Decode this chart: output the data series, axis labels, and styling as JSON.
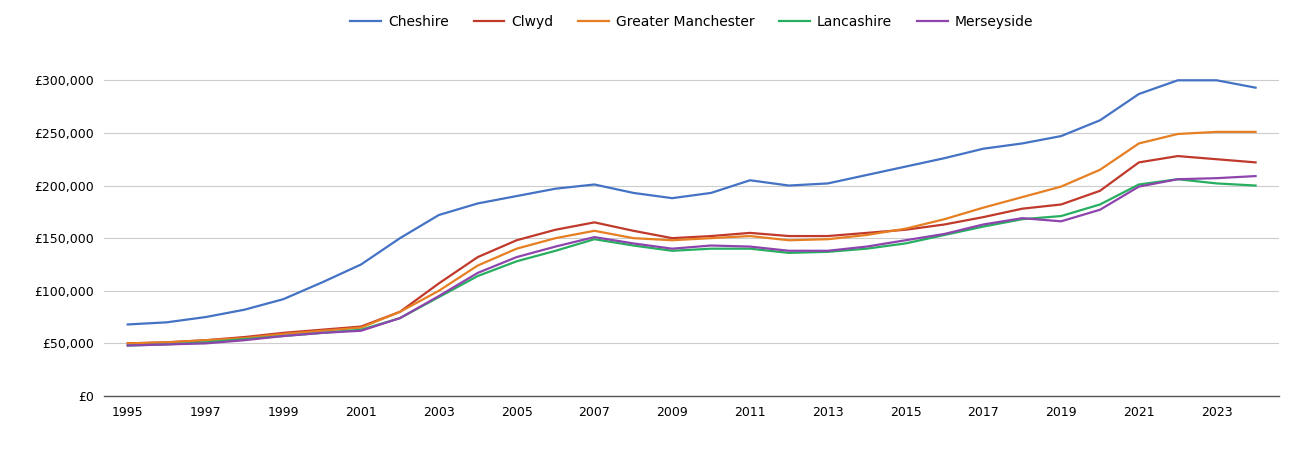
{
  "years": [
    1995,
    1996,
    1997,
    1998,
    1999,
    2000,
    2001,
    2002,
    2003,
    2004,
    2005,
    2006,
    2007,
    2008,
    2009,
    2010,
    2011,
    2012,
    2013,
    2014,
    2015,
    2016,
    2017,
    2018,
    2019,
    2020,
    2021,
    2022,
    2023,
    2024
  ],
  "Cheshire": [
    68000,
    70000,
    75000,
    82000,
    92000,
    108000,
    125000,
    150000,
    172000,
    183000,
    190000,
    197000,
    201000,
    193000,
    188000,
    193000,
    205000,
    200000,
    202000,
    210000,
    218000,
    226000,
    235000,
    240000,
    247000,
    262000,
    287000,
    300000,
    300000,
    293000
  ],
  "Clwyd": [
    50000,
    51000,
    53000,
    56000,
    60000,
    63000,
    66000,
    80000,
    107000,
    132000,
    148000,
    158000,
    165000,
    157000,
    150000,
    152000,
    155000,
    152000,
    152000,
    155000,
    158000,
    163000,
    170000,
    178000,
    182000,
    195000,
    222000,
    228000,
    225000,
    222000
  ],
  "Greater Manchester": [
    50000,
    51000,
    53000,
    55000,
    59000,
    62000,
    65000,
    80000,
    100000,
    124000,
    140000,
    150000,
    157000,
    150000,
    148000,
    150000,
    152000,
    148000,
    149000,
    153000,
    159000,
    168000,
    179000,
    189000,
    199000,
    215000,
    240000,
    249000,
    251000,
    251000
  ],
  "Lancashire": [
    48000,
    49000,
    51000,
    54000,
    57000,
    60000,
    63000,
    74000,
    94000,
    114000,
    128000,
    138000,
    149000,
    143000,
    138000,
    140000,
    140000,
    136000,
    137000,
    140000,
    145000,
    153000,
    161000,
    168000,
    171000,
    182000,
    201000,
    206000,
    202000,
    200000
  ],
  "Merseyside": [
    48000,
    49000,
    50000,
    53000,
    57000,
    60000,
    62000,
    74000,
    95000,
    117000,
    132000,
    142000,
    151000,
    145000,
    140000,
    143000,
    142000,
    138000,
    138000,
    142000,
    148000,
    154000,
    163000,
    169000,
    166000,
    177000,
    199000,
    206000,
    207000,
    209000
  ],
  "colors": {
    "Cheshire": "#4472c4",
    "Clwyd": "#c0392b",
    "Greater Manchester": "#e67e22",
    "Lancashire": "#27ae60",
    "Merseyside": "#8e44ad"
  },
  "yticks": [
    0,
    50000,
    100000,
    150000,
    200000,
    250000,
    300000
  ],
  "xticks": [
    1995,
    1997,
    1999,
    2001,
    2003,
    2005,
    2007,
    2009,
    2011,
    2013,
    2015,
    2017,
    2019,
    2021,
    2023
  ],
  "ylim": [
    0,
    325000
  ],
  "xlim": [
    1994.4,
    2024.6
  ],
  "figsize": [
    13.05,
    4.5
  ],
  "dpi": 100
}
